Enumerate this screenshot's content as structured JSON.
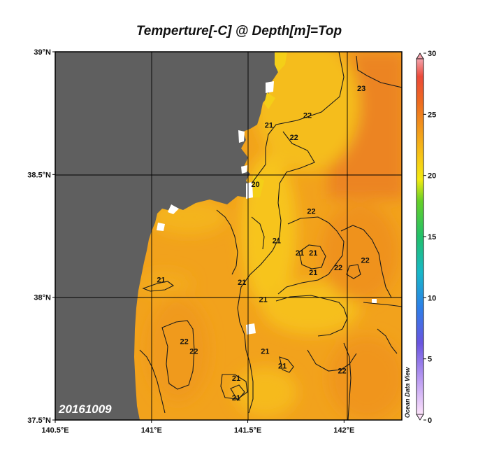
{
  "title": "Temperture[-C] @ Depth[m]=Top",
  "date_label": "20161009",
  "watermark": "Ocean Data View",
  "map": {
    "lon_range": [
      140.5,
      142.3
    ],
    "lat_range": [
      37.5,
      39.0
    ],
    "lon_ticks": [
      {
        "value": 140.5,
        "label": "140.5°E"
      },
      {
        "value": 141.0,
        "label": "141°E"
      },
      {
        "value": 141.5,
        "label": "141.5°E"
      },
      {
        "value": 142.0,
        "label": "142°E"
      }
    ],
    "lat_ticks": [
      {
        "value": 39.0,
        "label": "39°N"
      },
      {
        "value": 38.5,
        "label": "38.5°N"
      },
      {
        "value": 38.0,
        "label": "38°N"
      },
      {
        "value": 37.5,
        "label": "37.5°N"
      }
    ],
    "colors": {
      "land": "#5f5f5f",
      "sea_base": "#f2a21c",
      "sea_warm": "#ef8a1c",
      "sea_cool": "#f5c01a",
      "contour": "#1a1a1a"
    },
    "contour_labels": [
      {
        "text": "23",
        "lon": 142.09,
        "lat": 38.84
      },
      {
        "text": "22",
        "lon": 141.81,
        "lat": 38.73
      },
      {
        "text": "21",
        "lon": 141.61,
        "lat": 38.69
      },
      {
        "text": "22",
        "lon": 141.74,
        "lat": 38.64
      },
      {
        "text": "20",
        "lon": 141.54,
        "lat": 38.45
      },
      {
        "text": "22",
        "lon": 141.83,
        "lat": 38.34
      },
      {
        "text": "21",
        "lon": 141.65,
        "lat": 38.22
      },
      {
        "text": "21",
        "lon": 141.77,
        "lat": 38.17
      },
      {
        "text": "21",
        "lon": 141.84,
        "lat": 38.17
      },
      {
        "text": "22",
        "lon": 141.97,
        "lat": 38.11
      },
      {
        "text": "22",
        "lon": 142.11,
        "lat": 38.14
      },
      {
        "text": "21",
        "lon": 141.84,
        "lat": 38.09
      },
      {
        "text": "21",
        "lon": 141.05,
        "lat": 38.06
      },
      {
        "text": "21",
        "lon": 141.47,
        "lat": 38.05
      },
      {
        "text": "21",
        "lon": 141.58,
        "lat": 37.98
      },
      {
        "text": "22",
        "lon": 141.17,
        "lat": 37.81
      },
      {
        "text": "22",
        "lon": 141.22,
        "lat": 37.77
      },
      {
        "text": "21",
        "lon": 141.59,
        "lat": 37.77
      },
      {
        "text": "21",
        "lon": 141.68,
        "lat": 37.71
      },
      {
        "text": "22",
        "lon": 141.99,
        "lat": 37.69
      },
      {
        "text": "21",
        "lon": 141.44,
        "lat": 37.66
      },
      {
        "text": "21",
        "lon": 141.44,
        "lat": 37.58
      }
    ]
  },
  "colorbar": {
    "min": 0,
    "max": 30,
    "ticks": [
      {
        "value": 30,
        "label": "30"
      },
      {
        "value": 25,
        "label": "25"
      },
      {
        "value": 20,
        "label": "20"
      },
      {
        "value": 15,
        "label": "15"
      },
      {
        "value": 10,
        "label": "10"
      },
      {
        "value": 5,
        "label": "5"
      },
      {
        "value": 0,
        "label": "0"
      }
    ]
  }
}
